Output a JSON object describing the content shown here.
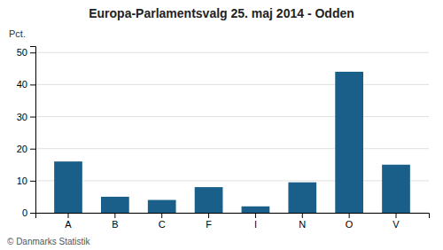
{
  "chart_data": {
    "type": "bar",
    "title": "Europa-Parlamentsvalg 25. maj 2014 - Odden",
    "categories": [
      "A",
      "B",
      "C",
      "F",
      "I",
      "N",
      "O",
      "V"
    ],
    "values": [
      16.0,
      5.0,
      4.0,
      8.0,
      2.0,
      9.5,
      44.0,
      15.0
    ],
    "color": "#1a5f8a",
    "ylabel": "Pct.",
    "ylim": [
      0,
      52
    ],
    "yticks": [
      0,
      10,
      20,
      30,
      40,
      50
    ],
    "grid": true,
    "annotations": [
      "© Danmarks Statistik"
    ]
  }
}
